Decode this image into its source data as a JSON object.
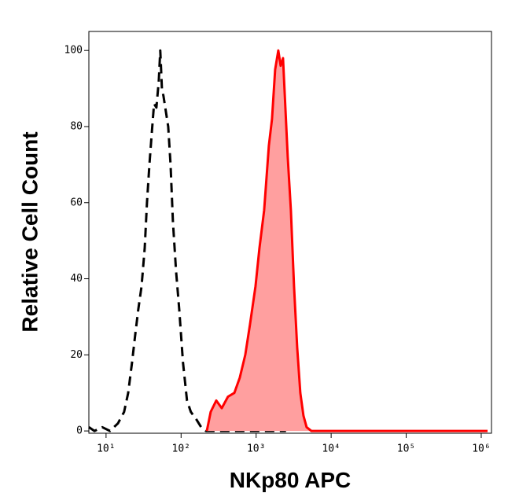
{
  "chart_data": {
    "type": "histogram-overlay",
    "x_label": "NKp80 APC",
    "y_label": "Relative Cell Count",
    "xscale": "log",
    "xlim": [
      5.9,
      1370000
    ],
    "ylim": [
      -0.6,
      105
    ],
    "xticks": [
      {
        "value": 10,
        "label": "10¹"
      },
      {
        "value": 100,
        "label": "10²"
      },
      {
        "value": 1000,
        "label": "10³"
      },
      {
        "value": 10000,
        "label": "10⁴"
      },
      {
        "value": 100000,
        "label": "10⁵"
      },
      {
        "value": 1000000,
        "label": "10⁶"
      }
    ],
    "yticks": [
      0,
      20,
      40,
      60,
      80,
      100
    ],
    "series": [
      {
        "color": "#000000",
        "line_style": "dashed",
        "fill": null,
        "x": [
          5.9,
          7.0,
          8.9,
          11.3,
          14.4,
          17.4,
          19.7,
          22.2,
          24.4,
          26.9,
          29.7,
          32.7,
          35.1,
          37.8,
          40.6,
          43.6,
          46.9,
          50.4,
          52.8,
          55.5,
          58.2,
          62.6,
          67.3,
          72.4,
          77.8,
          85.7,
          94.4,
          106,
          120,
          135,
          160,
          185,
          214,
          1000,
          2500
        ],
        "values": [
          1,
          0,
          1,
          0,
          2,
          5,
          10,
          18,
          25,
          32,
          38,
          48,
          60,
          70,
          78,
          86,
          85,
          92,
          100,
          90,
          88,
          84,
          80,
          70,
          55,
          42,
          32,
          18,
          8,
          5,
          3,
          1,
          0,
          0,
          0
        ]
      },
      {
        "color": "#ff0000",
        "line_style": "solid",
        "fill": "#ff9f9f",
        "x": [
          220,
          248,
          294,
          348,
          422,
          512,
          606,
          717,
          829,
          981,
          1107,
          1279,
          1479,
          1629,
          1794,
          1976,
          2125,
          2283,
          2452,
          2635,
          2902,
          3197,
          3522,
          3879,
          4273,
          4707,
          5441,
          6291,
          9700,
          108700,
          1213000
        ],
        "values": [
          0,
          5,
          8,
          6,
          9,
          10,
          14,
          20,
          28,
          38,
          48,
          58,
          75,
          82,
          95,
          100,
          96,
          98,
          85,
          72,
          58,
          38,
          22,
          10,
          4,
          1,
          0,
          0,
          0,
          0,
          0
        ]
      }
    ]
  }
}
